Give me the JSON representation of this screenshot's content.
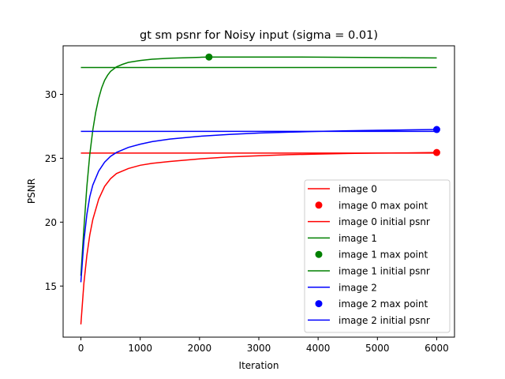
{
  "chart_data": {
    "type": "line",
    "title": "gt sm psnr for Noisy input (sigma = 0.01)",
    "xlabel": "Iteration",
    "ylabel": "PSNR",
    "xlim": [
      -300,
      6300
    ],
    "ylim": [
      11.0,
      33.8
    ],
    "xticks": [
      0,
      1000,
      2000,
      3000,
      4000,
      5000,
      6000
    ],
    "yticks": [
      15,
      20,
      25,
      30
    ],
    "grid": false,
    "legend_position": "lower-right",
    "series": [
      {
        "name": "image 0",
        "color": "#ff0000",
        "kind": "line",
        "x": [
          0,
          50,
          100,
          150,
          200,
          300,
          400,
          500,
          600,
          800,
          1000,
          1200,
          1500,
          2000,
          2500,
          3000,
          3500,
          4000,
          4500,
          5000,
          5500,
          6000
        ],
        "y": [
          12.0,
          15.2,
          17.4,
          19.0,
          20.2,
          21.8,
          22.8,
          23.4,
          23.8,
          24.2,
          24.45,
          24.6,
          24.75,
          24.95,
          25.1,
          25.2,
          25.28,
          25.33,
          25.37,
          25.4,
          25.42,
          25.45
        ]
      },
      {
        "name": "image 0 max point",
        "color": "#ff0000",
        "kind": "scatter",
        "x": [
          6000
        ],
        "y": [
          25.45
        ]
      },
      {
        "name": "image 0 initial psnr",
        "color": "#ff0000",
        "kind": "line",
        "x": [
          0,
          6000
        ],
        "y": [
          25.4,
          25.4
        ]
      },
      {
        "name": "image 1",
        "color": "#008000",
        "kind": "line",
        "x": [
          0,
          50,
          100,
          150,
          200,
          250,
          300,
          350,
          400,
          450,
          500,
          600,
          700,
          800,
          1000,
          1200,
          1500,
          2000,
          2160,
          2500,
          3000,
          3500,
          4000,
          4500,
          5000,
          5500,
          6000
        ],
        "y": [
          15.8,
          19.5,
          22.8,
          25.3,
          27.2,
          28.6,
          29.7,
          30.5,
          31.1,
          31.5,
          31.8,
          32.15,
          32.35,
          32.5,
          32.65,
          32.75,
          32.83,
          32.9,
          32.92,
          32.92,
          32.92,
          32.92,
          32.91,
          32.9,
          32.88,
          32.87,
          32.85
        ]
      },
      {
        "name": "image 1 max point",
        "color": "#008000",
        "kind": "scatter",
        "x": [
          2160
        ],
        "y": [
          32.92
        ]
      },
      {
        "name": "image 1 initial psnr",
        "color": "#008000",
        "kind": "line",
        "x": [
          0,
          6000
        ],
        "y": [
          32.1,
          32.1
        ]
      },
      {
        "name": "image 2",
        "color": "#0000ff",
        "kind": "line",
        "x": [
          0,
          50,
          100,
          150,
          200,
          300,
          400,
          500,
          600,
          800,
          1000,
          1200,
          1500,
          2000,
          2500,
          3000,
          3500,
          4000,
          4500,
          5000,
          5500,
          6000
        ],
        "y": [
          15.3,
          18.5,
          20.6,
          22.0,
          22.9,
          24.0,
          24.7,
          25.15,
          25.45,
          25.85,
          26.1,
          26.3,
          26.5,
          26.72,
          26.87,
          26.97,
          27.04,
          27.1,
          27.15,
          27.19,
          27.22,
          27.25
        ]
      },
      {
        "name": "image 2 max point",
        "color": "#0000ff",
        "kind": "scatter",
        "x": [
          6000
        ],
        "y": [
          27.25
        ]
      },
      {
        "name": "image 2 initial psnr",
        "color": "#0000ff",
        "kind": "line",
        "x": [
          0,
          6000
        ],
        "y": [
          27.1,
          27.1
        ]
      }
    ]
  }
}
